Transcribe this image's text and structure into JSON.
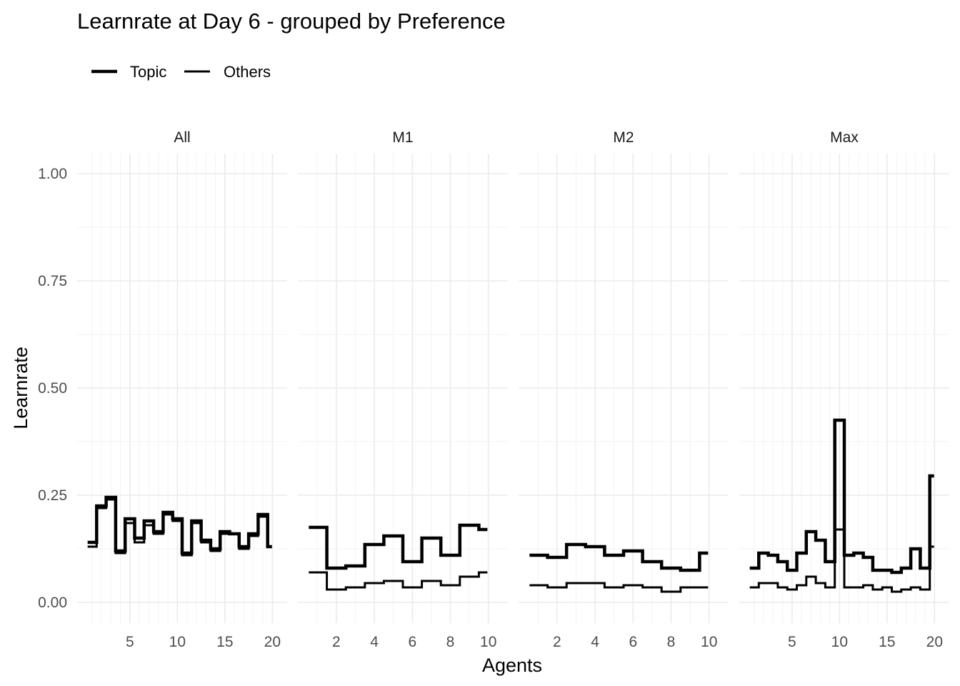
{
  "chart_data": {
    "type": "line",
    "title": "Learnrate at Day 6 - grouped by Preference",
    "xlabel": "Agents",
    "ylabel": "Learnrate",
    "ylim": [
      0,
      1
    ],
    "y_ticks": [
      0.0,
      0.25,
      0.5,
      0.75,
      1.0
    ],
    "y_tick_labels": [
      "0.00",
      "0.25",
      "0.50",
      "0.75",
      "1.00"
    ],
    "legend_position": "top-left",
    "legend": [
      {
        "name": "Topic",
        "color": "#000000",
        "weight": "thick"
      },
      {
        "name": "Others",
        "color": "#000000",
        "weight": "thin"
      }
    ],
    "panels": [
      {
        "label": "All",
        "xlim": [
          0.5,
          20.5
        ],
        "x_ticks": [
          5,
          10,
          15,
          20
        ],
        "x_tick_labels": [
          "5",
          "10",
          "15",
          "20"
        ],
        "x": [
          1,
          2,
          3,
          4,
          5,
          6,
          7,
          8,
          9,
          10,
          11,
          12,
          13,
          14,
          15,
          16,
          17,
          18,
          19,
          20
        ],
        "series": [
          {
            "name": "Topic",
            "values": [
              0.14,
              0.225,
              0.245,
              0.12,
              0.195,
              0.15,
              0.19,
              0.165,
              0.21,
              0.195,
              0.115,
              0.19,
              0.145,
              0.125,
              0.165,
              0.16,
              0.13,
              0.16,
              0.205,
              0.13
            ]
          },
          {
            "name": "Others",
            "values": [
              0.13,
              0.22,
              0.24,
              0.115,
              0.185,
              0.14,
              0.18,
              0.16,
              0.205,
              0.19,
              0.11,
              0.185,
              0.14,
              0.12,
              0.16,
              0.16,
              0.125,
              0.155,
              0.2,
              0.13
            ]
          }
        ]
      },
      {
        "label": "M1",
        "xlim": [
          0.5,
          10.5
        ],
        "x_ticks": [
          2,
          4,
          6,
          8,
          10
        ],
        "x_tick_labels": [
          "2",
          "4",
          "6",
          "8",
          "10"
        ],
        "x": [
          1,
          2,
          3,
          4,
          5,
          6,
          7,
          8,
          9,
          10
        ],
        "series": [
          {
            "name": "Topic",
            "values": [
              0.175,
              0.08,
              0.085,
              0.135,
              0.155,
              0.095,
              0.15,
              0.11,
              0.18,
              0.17
            ]
          },
          {
            "name": "Others",
            "values": [
              0.07,
              0.03,
              0.035,
              0.045,
              0.05,
              0.035,
              0.05,
              0.04,
              0.06,
              0.07
            ]
          }
        ]
      },
      {
        "label": "M2",
        "xlim": [
          0.5,
          10.5
        ],
        "x_ticks": [
          2,
          4,
          6,
          8,
          10
        ],
        "x_tick_labels": [
          "2",
          "4",
          "6",
          "8",
          "10"
        ],
        "x": [
          1,
          2,
          3,
          4,
          5,
          6,
          7,
          8,
          9,
          10
        ],
        "series": [
          {
            "name": "Topic",
            "values": [
              0.11,
              0.105,
              0.135,
              0.13,
              0.11,
              0.12,
              0.095,
              0.08,
              0.075,
              0.115
            ]
          },
          {
            "name": "Others",
            "values": [
              0.04,
              0.035,
              0.045,
              0.045,
              0.035,
              0.04,
              0.035,
              0.025,
              0.035,
              0.035
            ]
          }
        ]
      },
      {
        "label": "Max",
        "xlim": [
          0.5,
          20.5
        ],
        "x_ticks": [
          5,
          10,
          15,
          20
        ],
        "x_tick_labels": [
          "5",
          "10",
          "15",
          "20"
        ],
        "x": [
          1,
          2,
          3,
          4,
          5,
          6,
          7,
          8,
          9,
          10,
          11,
          12,
          13,
          14,
          15,
          16,
          17,
          18,
          19,
          20
        ],
        "series": [
          {
            "name": "Topic",
            "values": [
              0.08,
              0.115,
              0.11,
              0.095,
              0.075,
              0.115,
              0.165,
              0.145,
              0.095,
              0.425,
              0.11,
              0.115,
              0.105,
              0.075,
              0.075,
              0.07,
              0.08,
              0.125,
              0.08,
              0.295
            ]
          },
          {
            "name": "Others",
            "values": [
              0.035,
              0.045,
              0.045,
              0.035,
              0.03,
              0.04,
              0.06,
              0.045,
              0.035,
              0.17,
              0.035,
              0.035,
              0.04,
              0.03,
              0.035,
              0.025,
              0.03,
              0.035,
              0.03,
              0.13
            ]
          }
        ]
      }
    ]
  }
}
